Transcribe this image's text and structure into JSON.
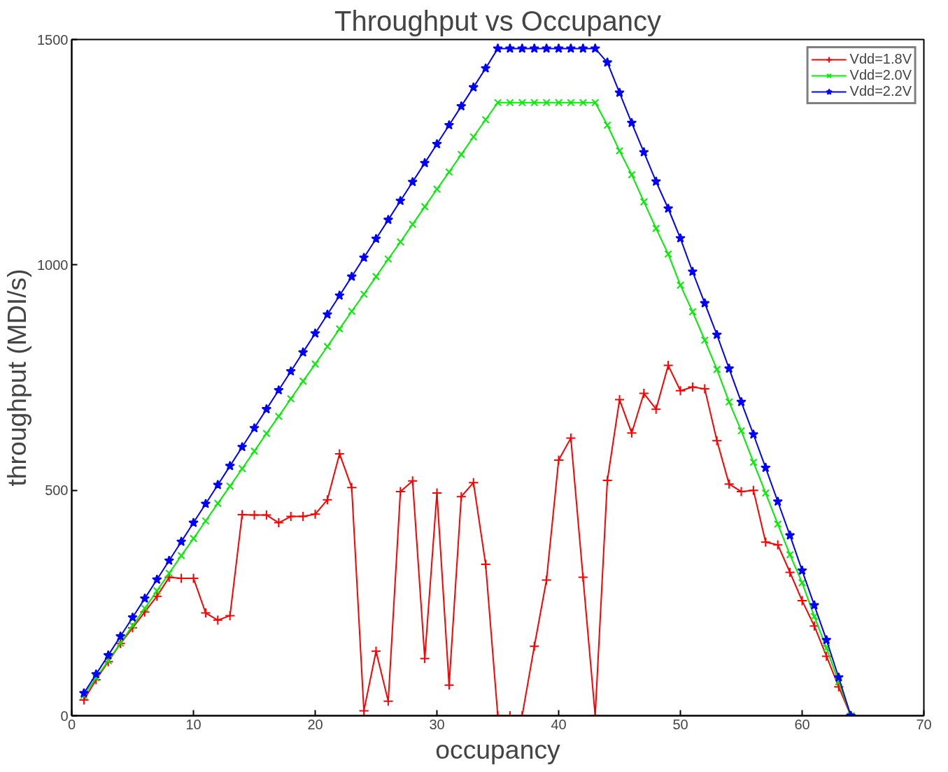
{
  "chart_data": {
    "type": "line",
    "title": "Throughput vs Occupancy",
    "xlabel": "occupancy",
    "ylabel": "throughput (MDI/s)",
    "x": [
      1,
      2,
      3,
      4,
      5,
      6,
      7,
      8,
      9,
      10,
      11,
      12,
      13,
      14,
      15,
      16,
      17,
      18,
      19,
      20,
      21,
      22,
      23,
      24,
      25,
      26,
      27,
      28,
      29,
      30,
      31,
      32,
      33,
      34,
      35,
      36,
      37,
      38,
      39,
      40,
      41,
      42,
      43,
      44,
      45,
      46,
      47,
      48,
      49,
      50,
      51,
      52,
      53,
      54,
      55,
      56,
      57,
      58,
      59,
      60,
      61,
      62,
      63,
      64
    ],
    "series": [
      {
        "name": "Vdd=1.8V",
        "color": "#ff0000",
        "marker": "cross",
        "values": [
          35,
          80,
          120,
          160,
          195,
          230,
          265,
          307,
          305,
          305,
          228,
          212,
          222,
          446,
          445,
          445,
          428,
          442,
          442,
          447,
          479,
          581,
          506,
          11,
          143,
          32,
          497,
          521,
          127,
          494,
          68,
          486,
          517,
          336,
          0,
          0,
          0,
          154,
          301,
          567,
          616,
          307,
          0,
          522,
          701,
          627,
          715,
          680,
          777,
          721,
          729,
          725,
          610,
          514,
          497,
          500,
          385,
          379,
          318,
          255,
          199,
          132,
          64,
          0
        ]
      },
      {
        "name": "Vdd=2.0V",
        "color": "#00ee00",
        "marker": "x",
        "values": [
          45,
          84,
          122,
          161,
          200,
          238,
          277,
          316,
          355,
          393,
          432,
          471,
          509,
          548,
          587,
          626,
          664,
          703,
          742,
          780,
          819,
          858,
          897,
          935,
          974,
          1013,
          1051,
          1090,
          1129,
          1168,
          1206,
          1245,
          1284,
          1322,
          1360,
          1360,
          1360,
          1360,
          1360,
          1360,
          1360,
          1360,
          1360,
          1310,
          1253,
          1200,
          1140,
          1081,
          1024,
          955,
          896,
          833,
          768,
          696,
          632,
          562,
          494,
          425,
          357,
          295,
          220,
          150,
          75,
          0
        ]
      },
      {
        "name": "Vdd=2.2V",
        "color": "#0000ff",
        "marker": "star",
        "values": [
          50,
          92,
          134,
          176,
          218,
          260,
          302,
          344,
          386,
          428,
          470,
          512,
          554,
          596,
          638,
          680,
          722,
          764,
          806,
          848,
          890,
          932,
          974,
          1016,
          1058,
          1100,
          1142,
          1184,
          1226,
          1268,
          1310,
          1352,
          1394,
          1436,
          1480,
          1480,
          1480,
          1480,
          1480,
          1480,
          1480,
          1480,
          1480,
          1449,
          1382,
          1315,
          1250,
          1185,
          1125,
          1059,
          985,
          915,
          845,
          770,
          696,
          624,
          550,
          475,
          400,
          322,
          245,
          168,
          85,
          0
        ]
      }
    ],
    "xlim": [
      0,
      70
    ],
    "xticks": [
      0,
      10,
      20,
      30,
      40,
      50,
      60,
      70
    ],
    "ylim": [
      0,
      1500
    ],
    "yticks": [
      0,
      500,
      1000,
      1500
    ],
    "legend": "top right",
    "grid": false
  }
}
